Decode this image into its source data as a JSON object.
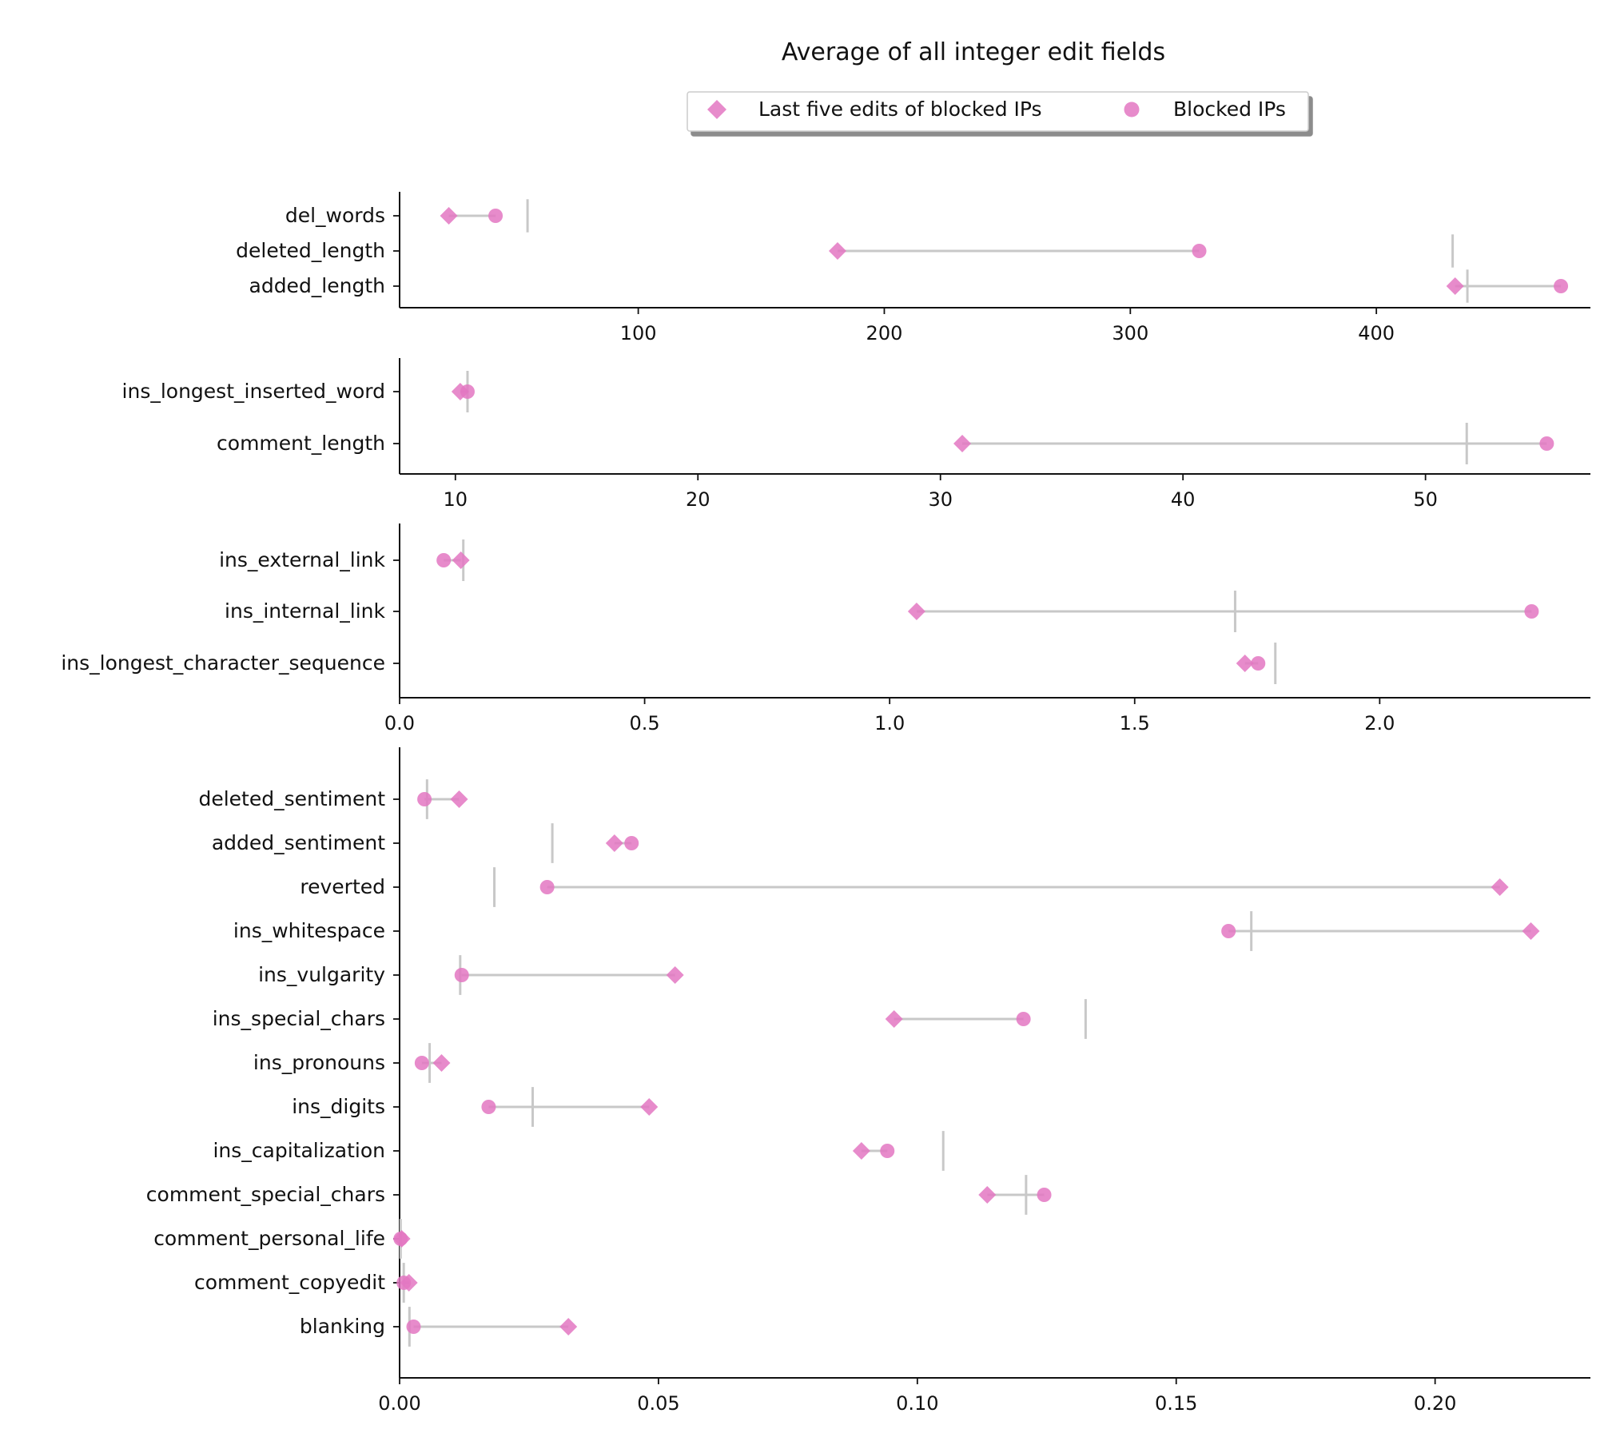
{
  "chart_data": {
    "type": "dumbbell",
    "title": "Average of all integer edit fields",
    "legend": {
      "placement": "top-center",
      "entries": [
        {
          "key": "last5",
          "label": "Last five edits of blocked IPs",
          "marker": "diamond"
        },
        {
          "key": "blocked",
          "label": "Blocked IPs",
          "marker": "circle"
        }
      ]
    },
    "colors": {
      "marker": "#e377c2",
      "range_line": "#c8c8c8",
      "reference_line": "#c8c8c8",
      "axis": "#111111"
    },
    "panels": [
      {
        "xlim": [
          3,
          487
        ],
        "ticks": [
          100,
          200,
          300,
          400
        ],
        "tick_labels": [
          "100",
          "200",
          "300",
          "400"
        ],
        "categories": [
          {
            "name": "del_words",
            "last5": 23,
            "blocked": 42,
            "reference": 55
          },
          {
            "name": "deleted_length",
            "last5": 181,
            "blocked": 328,
            "reference": 431
          },
          {
            "name": "added_length",
            "last5": 432,
            "blocked": 475,
            "reference": 437
          }
        ]
      },
      {
        "xlim": [
          7.7,
          56.8
        ],
        "ticks": [
          10,
          20,
          30,
          40,
          50
        ],
        "tick_labels": [
          "10",
          "20",
          "30",
          "40",
          "50"
        ],
        "categories": [
          {
            "name": "ins_longest_inserted_word",
            "last5": 10.2,
            "blocked": 10.5,
            "reference": 10.5
          },
          {
            "name": "comment_length",
            "last5": 30.9,
            "blocked": 55.0,
            "reference": 51.7
          }
        ]
      },
      {
        "xlim": [
          0,
          2.43
        ],
        "ticks": [
          0.0,
          0.5,
          1.0,
          1.5,
          2.0
        ],
        "tick_labels": [
          "0.0",
          "0.5",
          "1.0",
          "1.5",
          "2.0"
        ],
        "categories": [
          {
            "name": "ins_external_link",
            "last5": 0.125,
            "blocked": 0.09,
            "reference": 0.13
          },
          {
            "name": "ins_internal_link",
            "last5": 1.055,
            "blocked": 2.31,
            "reference": 1.705
          },
          {
            "name": "ins_longest_character_sequence",
            "last5": 1.725,
            "blocked": 1.752,
            "reference": 1.787
          }
        ]
      },
      {
        "xlim": [
          0,
          0.23
        ],
        "ticks": [
          0.0,
          0.05,
          0.1,
          0.15,
          0.2
        ],
        "tick_labels": [
          "0.00",
          "0.05",
          "0.10",
          "0.15",
          "0.20"
        ],
        "categories": [
          {
            "name": "deleted_sentiment",
            "last5": 0.0115,
            "blocked": 0.0048,
            "reference": 0.0053
          },
          {
            "name": "added_sentiment",
            "last5": 0.0415,
            "blocked": 0.0448,
            "reference": 0.0295
          },
          {
            "name": "reverted",
            "last5": 0.2125,
            "blocked": 0.0285,
            "reference": 0.0183
          },
          {
            "name": "ins_whitespace",
            "last5": 0.2185,
            "blocked": 0.1601,
            "reference": 0.1645
          },
          {
            "name": "ins_vulgarity",
            "last5": 0.0532,
            "blocked": 0.012,
            "reference": 0.0117
          },
          {
            "name": "ins_special_chars",
            "last5": 0.0955,
            "blocked": 0.1205,
            "reference": 0.1325
          },
          {
            "name": "ins_pronouns",
            "last5": 0.0081,
            "blocked": 0.0043,
            "reference": 0.0058
          },
          {
            "name": "ins_digits",
            "last5": 0.0482,
            "blocked": 0.0172,
            "reference": 0.0257
          },
          {
            "name": "ins_capitalization",
            "last5": 0.0892,
            "blocked": 0.0942,
            "reference": 0.105
          },
          {
            "name": "comment_special_chars",
            "last5": 0.1135,
            "blocked": 0.1245,
            "reference": 0.121
          },
          {
            "name": "comment_personal_life",
            "last5": 0.0004,
            "blocked": 0.0002,
            "reference": 0.0002
          },
          {
            "name": "comment_copyedit",
            "last5": 0.0018,
            "blocked": 0.0008,
            "reference": 0.0008
          },
          {
            "name": "blanking",
            "last5": 0.0326,
            "blocked": 0.0027,
            "reference": 0.0019
          }
        ]
      }
    ]
  }
}
